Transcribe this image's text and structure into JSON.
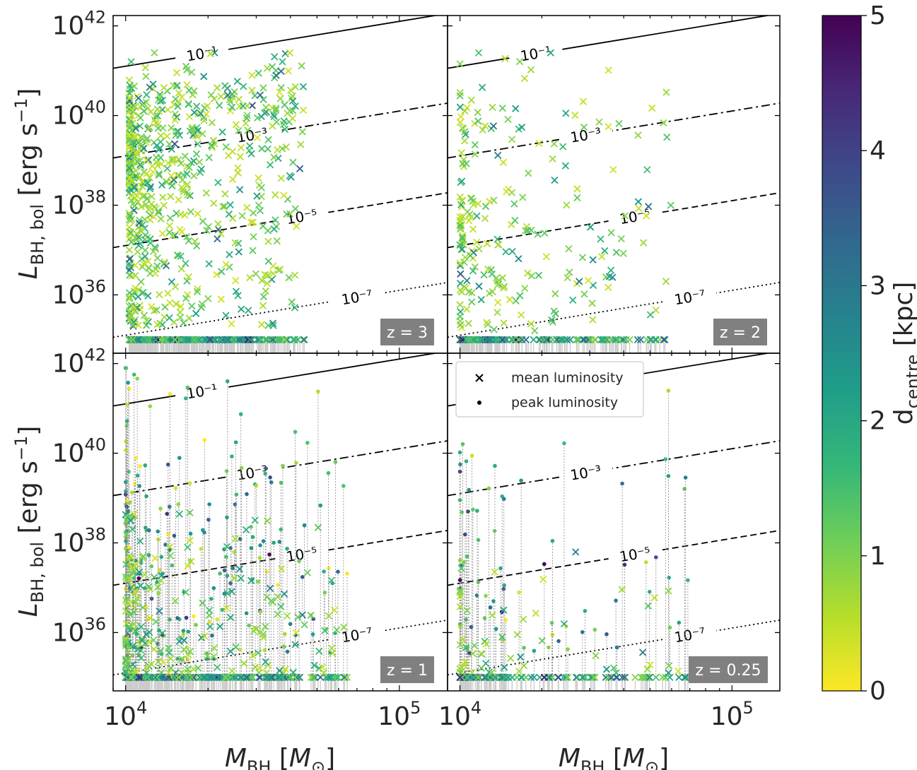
{
  "chart_data": [
    {
      "type": "scatter",
      "panel": "top-left",
      "redshift_label": "z = 3",
      "xscale": "log",
      "yscale": "log",
      "xlim": [
        9000,
        150000
      ],
      "ylim": [
        5e+34,
        1.7e+42
      ],
      "floor_luminosity": 1e+35,
      "mass_range": [
        10300,
        45000
      ],
      "n_mean_points": 1000,
      "show_peak": false,
      "y_tick_labels": [
        "10^36",
        "10^38",
        "10^40",
        "10^42"
      ],
      "x_tick_labels": [],
      "ylabel": "L_BH, bol [erg s^-1]",
      "xlabel": ""
    },
    {
      "type": "scatter",
      "panel": "top-right",
      "redshift_label": "z = 2",
      "xscale": "log",
      "yscale": "log",
      "xlim": [
        9000,
        150000
      ],
      "ylim": [
        5e+34,
        1.7e+42
      ],
      "floor_luminosity": 1e+35,
      "mass_range": [
        10000,
        60000
      ],
      "n_mean_points": 420,
      "show_peak": false,
      "y_tick_labels": [],
      "x_tick_labels": [],
      "ylabel": "",
      "xlabel": ""
    },
    {
      "type": "scatter",
      "panel": "bottom-left",
      "redshift_label": "z = 1",
      "xscale": "log",
      "yscale": "log",
      "xlim": [
        9000,
        150000
      ],
      "ylim": [
        5e+34,
        1.7e+42
      ],
      "floor_luminosity": 1e+35,
      "mass_range": [
        10000,
        65000
      ],
      "n_mean_points": 520,
      "show_peak": true,
      "y_tick_labels": [
        "10^36",
        "10^38",
        "10^40",
        "10^42"
      ],
      "x_tick_labels": [
        "10^4",
        "10^5"
      ],
      "ylabel": "L_BH, bol [erg s^-1]",
      "xlabel": "M_BH [M_⊙]"
    },
    {
      "type": "scatter",
      "panel": "bottom-right",
      "redshift_label": "z = 0.25",
      "xscale": "log",
      "yscale": "log",
      "xlim": [
        9000,
        150000
      ],
      "ylim": [
        5e+34,
        1.7e+42
      ],
      "floor_luminosity": 1e+35,
      "mass_range": [
        10000,
        70000
      ],
      "n_mean_points": 190,
      "show_peak": true,
      "legend": {
        "placement": "top-left",
        "entries": [
          "mean luminosity",
          "peak luminosity"
        ]
      },
      "y_tick_labels": [],
      "x_tick_labels": [
        "10^4",
        "10^5"
      ],
      "ylabel": "",
      "xlabel": "M_BH [M_⊙]"
    }
  ],
  "eddington_lines": [
    {
      "label": "10^-1",
      "log_fedd": -1,
      "style": "solid"
    },
    {
      "label": "10^-3",
      "log_fedd": -3,
      "style": "dashdot"
    },
    {
      "label": "10^-5",
      "log_fedd": -5,
      "style": "dashed"
    },
    {
      "label": "10^-7",
      "log_fedd": -7,
      "style": "dotted"
    }
  ],
  "colorbar": {
    "label": "d_centre [kpc]",
    "min": 0,
    "max": 5,
    "ticks": [
      "0",
      "1",
      "2",
      "3",
      "4",
      "5"
    ],
    "colormap": "viridis (reversed: 0 = yellow, 5 = dark purple)",
    "stops": [
      "#fde725",
      "#b5de2b",
      "#6ece58",
      "#35b779",
      "#1f9e89",
      "#26828e",
      "#31688e",
      "#3e4989",
      "#482878",
      "#440154"
    ]
  },
  "colors": {
    "upper_limit_arrow": "#cccccc",
    "redshift_badge_bg": "#808080",
    "redshift_badge_text": "#ffffff",
    "connector_line": "#888888"
  }
}
